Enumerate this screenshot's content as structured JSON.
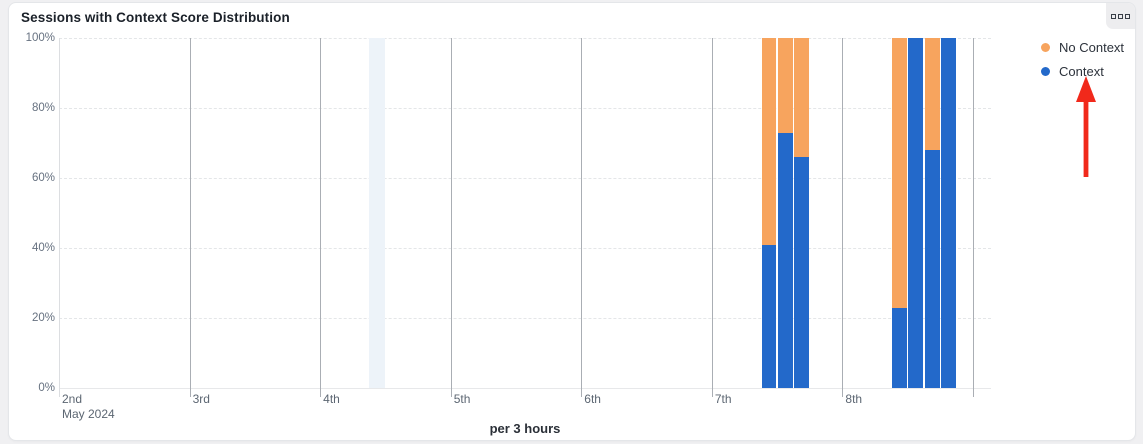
{
  "card": {
    "title": "Sessions with Context Score Distribution",
    "more_button": "more-options"
  },
  "colors": {
    "no_context": "#f7a45e",
    "context": "#2369ca",
    "highlight_band": "#edf3f9",
    "annotation_arrow": "#f1291b",
    "card_background": "#ffffff",
    "page_background": "#f0f0f2"
  },
  "chart_data": {
    "type": "bar",
    "stacked": true,
    "normalized": "percent",
    "title": "Sessions with Context Score Distribution",
    "xlabel": "per 3 hours",
    "ylabel": "",
    "ylim": [
      0,
      100
    ],
    "grid": "horizontal-dashed, vertical-day-lines",
    "legend_position": "top-right",
    "y_ticks": [
      {
        "pct": 0,
        "label": "0%"
      },
      {
        "pct": 20,
        "label": "20%"
      },
      {
        "pct": 40,
        "label": "40%"
      },
      {
        "pct": 60,
        "label": "60%"
      },
      {
        "pct": 80,
        "label": "80%"
      },
      {
        "pct": 100,
        "label": "100%"
      }
    ],
    "x_days": [
      {
        "label": "2nd",
        "sublabel": "May 2024"
      },
      {
        "label": "3rd",
        "sublabel": ""
      },
      {
        "label": "4th",
        "sublabel": ""
      },
      {
        "label": "5th",
        "sublabel": ""
      },
      {
        "label": "6th",
        "sublabel": ""
      },
      {
        "label": "7th",
        "sublabel": ""
      },
      {
        "label": "8th",
        "sublabel": ""
      }
    ],
    "slots_per_day": 8,
    "series": [
      {
        "name": "No Context",
        "color": "#f7a45e"
      },
      {
        "name": "Context",
        "color": "#2369ca"
      }
    ],
    "bars": [
      {
        "day": "7th May 2024",
        "day_index": 5,
        "slot": 3,
        "context_pct": 41,
        "no_context_pct": 59
      },
      {
        "day": "7th May 2024",
        "day_index": 5,
        "slot": 4,
        "context_pct": 73,
        "no_context_pct": 27
      },
      {
        "day": "7th May 2024",
        "day_index": 5,
        "slot": 5,
        "context_pct": 66,
        "no_context_pct": 34
      },
      {
        "day": "8th May 2024",
        "day_index": 6,
        "slot": 3,
        "context_pct": 23,
        "no_context_pct": 77
      },
      {
        "day": "8th May 2024",
        "day_index": 6,
        "slot": 4,
        "context_pct": 100,
        "no_context_pct": 0
      },
      {
        "day": "8th May 2024",
        "day_index": 6,
        "slot": 5,
        "context_pct": 68,
        "no_context_pct": 32
      },
      {
        "day": "8th May 2024",
        "day_index": 6,
        "slot": 6,
        "context_pct": 100,
        "no_context_pct": 0
      }
    ],
    "highlight_band": {
      "day_index": 2,
      "slot": 3
    },
    "legend": [
      {
        "label": "No Context",
        "color": "#f7a45e"
      },
      {
        "label": "Context",
        "color": "#2369ca"
      }
    ],
    "annotation": {
      "type": "arrow-up",
      "color": "#f1291b",
      "points_at": "Context legend item"
    }
  }
}
